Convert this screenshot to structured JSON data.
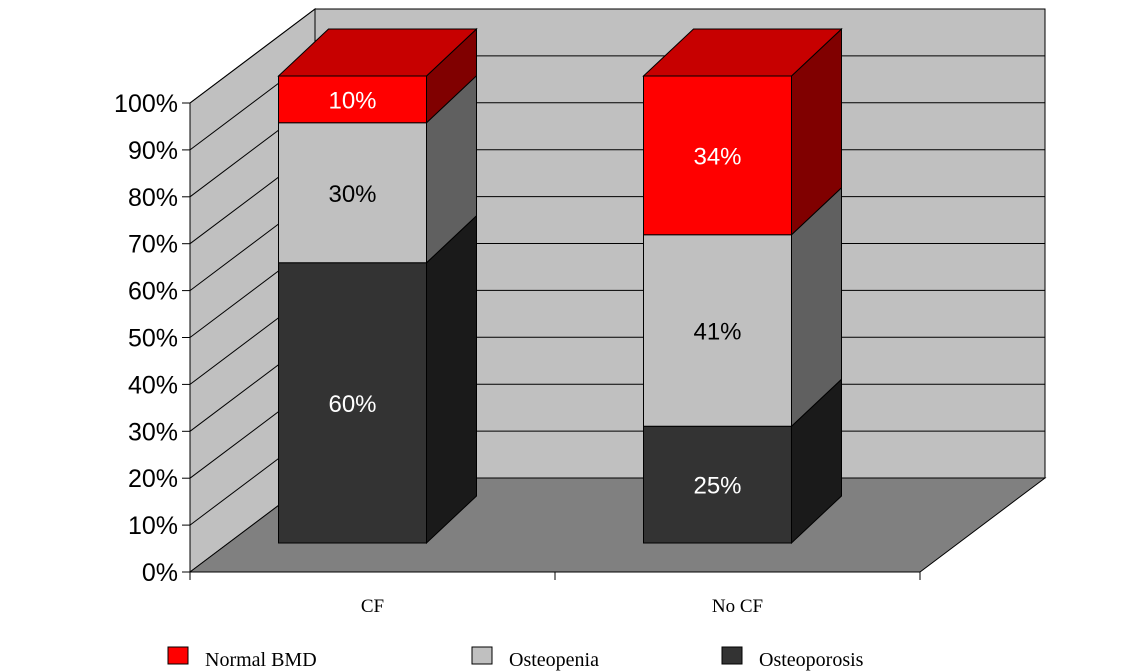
{
  "chart_data": {
    "type": "bar",
    "stacked": true,
    "three_d": true,
    "categories": [
      "CF",
      "No CF"
    ],
    "series": [
      {
        "name": "Osteoporosis",
        "values": [
          60,
          25
        ],
        "labels": [
          "60%",
          "25%"
        ],
        "color": "#333333"
      },
      {
        "name": "Osteopenia",
        "values": [
          30,
          41
        ],
        "labels": [
          "30%",
          "41%"
        ],
        "color": "#C0C0C0"
      },
      {
        "name": "Normal BMD",
        "values": [
          10,
          34
        ],
        "labels": [
          "10%",
          "34%"
        ],
        "color": "#FF0000"
      }
    ],
    "legend_order": [
      "Normal BMD",
      "Osteopenia",
      "Osteoporosis"
    ],
    "yticks": [
      "0%",
      "10%",
      "20%",
      "30%",
      "40%",
      "50%",
      "60%",
      "70%",
      "80%",
      "90%",
      "100%"
    ],
    "ylim": [
      0,
      100
    ],
    "title": "",
    "xlabel": "",
    "ylabel": "",
    "grid": true,
    "legend_position": "bottom",
    "colors": {
      "back_wall": "#C0C0C0",
      "side_wall": "#C0C0C0",
      "floor": "#808080"
    }
  }
}
